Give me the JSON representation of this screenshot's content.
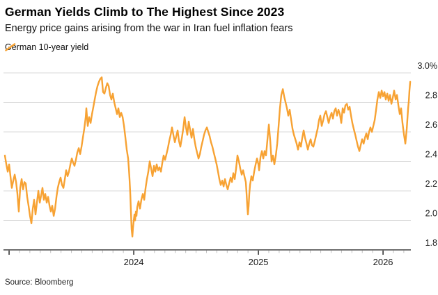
{
  "header": {
    "title": "German Yields Climb to The Highest Since 2023",
    "subtitle": "Energy price gains arising from the war in Iran fuel inflation fears"
  },
  "legend": {
    "series_label": "German 10-year yield",
    "marker": "orange-slash"
  },
  "source": "Source: Bloomberg",
  "colors": {
    "line": "#F7A233",
    "grid": "#D9D9D9",
    "axis": "#1A1A1A",
    "tick_minor": "#BDBDBD",
    "text": "#000000"
  },
  "chart_data": {
    "type": "line",
    "title": "German Yields Climb to The Highest Since 2023",
    "subtitle": "Energy price gains arising from the war in Iran fuel inflation fears",
    "series_name": "German 10-year yield",
    "unit": "%",
    "legend_position": "top-left",
    "grid": "horizontal-only",
    "x_axis": {
      "range": [
        2022.955,
        2026.223
      ],
      "ticks": [
        2024,
        2025,
        2026
      ],
      "tick_labels": [
        "2024",
        "2025",
        "2026"
      ],
      "minor_tick_step_years": 0.0833333
    },
    "y_axis": {
      "range": [
        1.8,
        3.0
      ],
      "ticks": [
        1.8,
        2.0,
        2.2,
        2.4,
        2.6,
        2.8,
        3.0
      ],
      "tick_labels": [
        "1.8",
        "2.0",
        "2.2",
        "2.4",
        "2.6",
        "2.8",
        "3.0%"
      ],
      "side": "right"
    },
    "points": [
      [
        2022.966,
        2.44
      ],
      [
        2022.978,
        2.38
      ],
      [
        2022.989,
        2.33
      ],
      [
        2023.0,
        2.38
      ],
      [
        2023.011,
        2.3
      ],
      [
        2023.022,
        2.22
      ],
      [
        2023.034,
        2.27
      ],
      [
        2023.045,
        2.31
      ],
      [
        2023.056,
        2.26
      ],
      [
        2023.067,
        2.18
      ],
      [
        2023.078,
        2.06
      ],
      [
        2023.089,
        2.22
      ],
      [
        2023.101,
        2.28
      ],
      [
        2023.112,
        2.21
      ],
      [
        2023.123,
        2.26
      ],
      [
        2023.134,
        2.25
      ],
      [
        2023.145,
        2.16
      ],
      [
        2023.156,
        2.1
      ],
      [
        2023.168,
        2.03
      ],
      [
        2023.179,
        1.98
      ],
      [
        2023.19,
        2.08
      ],
      [
        2023.201,
        2.14
      ],
      [
        2023.212,
        2.04
      ],
      [
        2023.223,
        2.12
      ],
      [
        2023.235,
        2.2
      ],
      [
        2023.246,
        2.12
      ],
      [
        2023.257,
        2.17
      ],
      [
        2023.268,
        2.22
      ],
      [
        2023.279,
        2.14
      ],
      [
        2023.29,
        2.18
      ],
      [
        2023.302,
        2.12
      ],
      [
        2023.313,
        2.16
      ],
      [
        2023.324,
        2.1
      ],
      [
        2023.335,
        2.06
      ],
      [
        2023.346,
        2.1
      ],
      [
        2023.358,
        2.03
      ],
      [
        2023.369,
        2.08
      ],
      [
        2023.38,
        2.16
      ],
      [
        2023.391,
        2.22
      ],
      [
        2023.402,
        2.26
      ],
      [
        2023.413,
        2.29
      ],
      [
        2023.425,
        2.24
      ],
      [
        2023.436,
        2.22
      ],
      [
        2023.447,
        2.28
      ],
      [
        2023.458,
        2.34
      ],
      [
        2023.469,
        2.3
      ],
      [
        2023.48,
        2.33
      ],
      [
        2023.492,
        2.38
      ],
      [
        2023.503,
        2.42
      ],
      [
        2023.514,
        2.39
      ],
      [
        2023.525,
        2.37
      ],
      [
        2023.536,
        2.41
      ],
      [
        2023.547,
        2.46
      ],
      [
        2023.559,
        2.49
      ],
      [
        2023.57,
        2.45
      ],
      [
        2023.581,
        2.5
      ],
      [
        2023.592,
        2.56
      ],
      [
        2023.603,
        2.62
      ],
      [
        2023.615,
        2.7
      ],
      [
        2023.62,
        2.76
      ],
      [
        2023.631,
        2.64
      ],
      [
        2023.642,
        2.7
      ],
      [
        2023.654,
        2.66
      ],
      [
        2023.665,
        2.72
      ],
      [
        2023.676,
        2.77
      ],
      [
        2023.687,
        2.82
      ],
      [
        2023.698,
        2.87
      ],
      [
        2023.709,
        2.91
      ],
      [
        2023.721,
        2.94
      ],
      [
        2023.732,
        2.96
      ],
      [
        2023.743,
        2.97
      ],
      [
        2023.754,
        2.87
      ],
      [
        2023.765,
        2.86
      ],
      [
        2023.777,
        2.9
      ],
      [
        2023.788,
        2.93
      ],
      [
        2023.799,
        2.91
      ],
      [
        2023.81,
        2.85
      ],
      [
        2023.821,
        2.82
      ],
      [
        2023.832,
        2.86
      ],
      [
        2023.844,
        2.8
      ],
      [
        2023.855,
        2.76
      ],
      [
        2023.866,
        2.72
      ],
      [
        2023.877,
        2.76
      ],
      [
        2023.888,
        2.7
      ],
      [
        2023.899,
        2.73
      ],
      [
        2023.911,
        2.7
      ],
      [
        2023.922,
        2.64
      ],
      [
        2023.933,
        2.56
      ],
      [
        2023.944,
        2.48
      ],
      [
        2023.955,
        2.42
      ],
      [
        2023.961,
        2.35
      ],
      [
        2023.966,
        2.28
      ],
      [
        2023.972,
        2.18
      ],
      [
        2023.978,
        2.05
      ],
      [
        2023.983,
        1.94
      ],
      [
        2023.989,
        1.89
      ],
      [
        2023.994,
        1.95
      ],
      [
        2024.0,
        2.0
      ],
      [
        2024.006,
        2.04
      ],
      [
        2024.011,
        2.0
      ],
      [
        2024.017,
        2.06
      ],
      [
        2024.022,
        2.03
      ],
      [
        2024.028,
        2.09
      ],
      [
        2024.039,
        2.13
      ],
      [
        2024.05,
        2.08
      ],
      [
        2024.061,
        2.14
      ],
      [
        2024.073,
        2.18
      ],
      [
        2024.084,
        2.14
      ],
      [
        2024.095,
        2.22
      ],
      [
        2024.106,
        2.28
      ],
      [
        2024.117,
        2.33
      ],
      [
        2024.128,
        2.4
      ],
      [
        2024.14,
        2.35
      ],
      [
        2024.151,
        2.3
      ],
      [
        2024.162,
        2.37
      ],
      [
        2024.173,
        2.33
      ],
      [
        2024.184,
        2.38
      ],
      [
        2024.196,
        2.34
      ],
      [
        2024.207,
        2.36
      ],
      [
        2024.218,
        2.33
      ],
      [
        2024.229,
        2.39
      ],
      [
        2024.24,
        2.44
      ],
      [
        2024.251,
        2.41
      ],
      [
        2024.263,
        2.45
      ],
      [
        2024.274,
        2.49
      ],
      [
        2024.285,
        2.54
      ],
      [
        2024.296,
        2.58
      ],
      [
        2024.307,
        2.63
      ],
      [
        2024.318,
        2.58
      ],
      [
        2024.33,
        2.53
      ],
      [
        2024.341,
        2.57
      ],
      [
        2024.352,
        2.61
      ],
      [
        2024.363,
        2.54
      ],
      [
        2024.374,
        2.5
      ],
      [
        2024.386,
        2.56
      ],
      [
        2024.397,
        2.62
      ],
      [
        2024.408,
        2.7
      ],
      [
        2024.419,
        2.63
      ],
      [
        2024.43,
        2.58
      ],
      [
        2024.441,
        2.67
      ],
      [
        2024.453,
        2.61
      ],
      [
        2024.464,
        2.56
      ],
      [
        2024.475,
        2.62
      ],
      [
        2024.486,
        2.55
      ],
      [
        2024.497,
        2.5
      ],
      [
        2024.508,
        2.46
      ],
      [
        2024.52,
        2.42
      ],
      [
        2024.531,
        2.45
      ],
      [
        2024.542,
        2.5
      ],
      [
        2024.553,
        2.54
      ],
      [
        2024.564,
        2.58
      ],
      [
        2024.575,
        2.61
      ],
      [
        2024.587,
        2.63
      ],
      [
        2024.598,
        2.6
      ],
      [
        2024.609,
        2.57
      ],
      [
        2024.62,
        2.53
      ],
      [
        2024.631,
        2.5
      ],
      [
        2024.642,
        2.46
      ],
      [
        2024.654,
        2.42
      ],
      [
        2024.665,
        2.38
      ],
      [
        2024.676,
        2.33
      ],
      [
        2024.687,
        2.28
      ],
      [
        2024.698,
        2.24
      ],
      [
        2024.71,
        2.27
      ],
      [
        2024.721,
        2.23
      ],
      [
        2024.732,
        2.28
      ],
      [
        2024.743,
        2.24
      ],
      [
        2024.754,
        2.21
      ],
      [
        2024.765,
        2.25
      ],
      [
        2024.777,
        2.29
      ],
      [
        2024.788,
        2.26
      ],
      [
        2024.799,
        2.32
      ],
      [
        2024.81,
        2.28
      ],
      [
        2024.821,
        2.35
      ],
      [
        2024.832,
        2.44
      ],
      [
        2024.844,
        2.4
      ],
      [
        2024.855,
        2.35
      ],
      [
        2024.866,
        2.31
      ],
      [
        2024.877,
        2.34
      ],
      [
        2024.888,
        2.3
      ],
      [
        2024.899,
        2.26
      ],
      [
        2024.905,
        2.18
      ],
      [
        2024.911,
        2.1
      ],
      [
        2024.916,
        2.04
      ],
      [
        2024.922,
        2.1
      ],
      [
        2024.927,
        2.18
      ],
      [
        2024.933,
        2.24
      ],
      [
        2024.944,
        2.3
      ],
      [
        2024.955,
        2.27
      ],
      [
        2024.966,
        2.33
      ],
      [
        2024.978,
        2.38
      ],
      [
        2024.989,
        2.42
      ],
      [
        2025.0,
        2.38
      ],
      [
        2025.006,
        2.34
      ],
      [
        2025.017,
        2.43
      ],
      [
        2025.028,
        2.47
      ],
      [
        2025.039,
        2.42
      ],
      [
        2025.05,
        2.47
      ],
      [
        2025.061,
        2.44
      ],
      [
        2025.073,
        2.55
      ],
      [
        2025.084,
        2.65
      ],
      [
        2025.095,
        2.54
      ],
      [
        2025.106,
        2.4
      ],
      [
        2025.117,
        2.44
      ],
      [
        2025.128,
        2.38
      ],
      [
        2025.14,
        2.44
      ],
      [
        2025.151,
        2.52
      ],
      [
        2025.162,
        2.64
      ],
      [
        2025.173,
        2.76
      ],
      [
        2025.184,
        2.85
      ],
      [
        2025.196,
        2.89
      ],
      [
        2025.207,
        2.84
      ],
      [
        2025.218,
        2.8
      ],
      [
        2025.229,
        2.76
      ],
      [
        2025.24,
        2.71
      ],
      [
        2025.251,
        2.75
      ],
      [
        2025.263,
        2.68
      ],
      [
        2025.274,
        2.62
      ],
      [
        2025.285,
        2.58
      ],
      [
        2025.296,
        2.55
      ],
      [
        2025.307,
        2.52
      ],
      [
        2025.318,
        2.48
      ],
      [
        2025.33,
        2.53
      ],
      [
        2025.341,
        2.5
      ],
      [
        2025.352,
        2.56
      ],
      [
        2025.363,
        2.61
      ],
      [
        2025.374,
        2.56
      ],
      [
        2025.386,
        2.52
      ],
      [
        2025.397,
        2.48
      ],
      [
        2025.408,
        2.52
      ],
      [
        2025.419,
        2.55
      ],
      [
        2025.43,
        2.51
      ],
      [
        2025.441,
        2.5
      ],
      [
        2025.453,
        2.54
      ],
      [
        2025.464,
        2.58
      ],
      [
        2025.475,
        2.62
      ],
      [
        2025.486,
        2.68
      ],
      [
        2025.497,
        2.71
      ],
      [
        2025.508,
        2.64
      ],
      [
        2025.52,
        2.68
      ],
      [
        2025.531,
        2.72
      ],
      [
        2025.542,
        2.74
      ],
      [
        2025.553,
        2.7
      ],
      [
        2025.564,
        2.66
      ],
      [
        2025.575,
        2.7
      ],
      [
        2025.587,
        2.73
      ],
      [
        2025.598,
        2.69
      ],
      [
        2025.609,
        2.74
      ],
      [
        2025.62,
        2.76
      ],
      [
        2025.631,
        2.71
      ],
      [
        2025.642,
        2.75
      ],
      [
        2025.654,
        2.72
      ],
      [
        2025.665,
        2.66
      ],
      [
        2025.676,
        2.76
      ],
      [
        2025.687,
        2.73
      ],
      [
        2025.698,
        2.78
      ],
      [
        2025.71,
        2.79
      ],
      [
        2025.721,
        2.75
      ],
      [
        2025.732,
        2.77
      ],
      [
        2025.743,
        2.71
      ],
      [
        2025.754,
        2.66
      ],
      [
        2025.765,
        2.62
      ],
      [
        2025.777,
        2.58
      ],
      [
        2025.788,
        2.54
      ],
      [
        2025.799,
        2.5
      ],
      [
        2025.81,
        2.47
      ],
      [
        2025.821,
        2.51
      ],
      [
        2025.832,
        2.55
      ],
      [
        2025.844,
        2.52
      ],
      [
        2025.855,
        2.56
      ],
      [
        2025.866,
        2.59
      ],
      [
        2025.877,
        2.55
      ],
      [
        2025.888,
        2.6
      ],
      [
        2025.899,
        2.63
      ],
      [
        2025.911,
        2.6
      ],
      [
        2025.922,
        2.64
      ],
      [
        2025.933,
        2.68
      ],
      [
        2025.944,
        2.75
      ],
      [
        2025.955,
        2.82
      ],
      [
        2025.966,
        2.87
      ],
      [
        2025.978,
        2.83
      ],
      [
        2025.989,
        2.88
      ],
      [
        2026.0,
        2.84
      ],
      [
        2026.011,
        2.87
      ],
      [
        2026.022,
        2.82
      ],
      [
        2026.034,
        2.86
      ],
      [
        2026.045,
        2.81
      ],
      [
        2026.056,
        2.85
      ],
      [
        2026.067,
        2.79
      ],
      [
        2026.078,
        2.83
      ],
      [
        2026.089,
        2.88
      ],
      [
        2026.101,
        2.82
      ],
      [
        2026.112,
        2.85
      ],
      [
        2026.123,
        2.78
      ],
      [
        2026.134,
        2.72
      ],
      [
        2026.145,
        2.76
      ],
      [
        2026.156,
        2.66
      ],
      [
        2026.168,
        2.58
      ],
      [
        2026.179,
        2.52
      ],
      [
        2026.19,
        2.62
      ],
      [
        2026.201,
        2.76
      ],
      [
        2026.207,
        2.81
      ],
      [
        2026.212,
        2.88
      ],
      [
        2026.218,
        2.94
      ]
    ]
  }
}
